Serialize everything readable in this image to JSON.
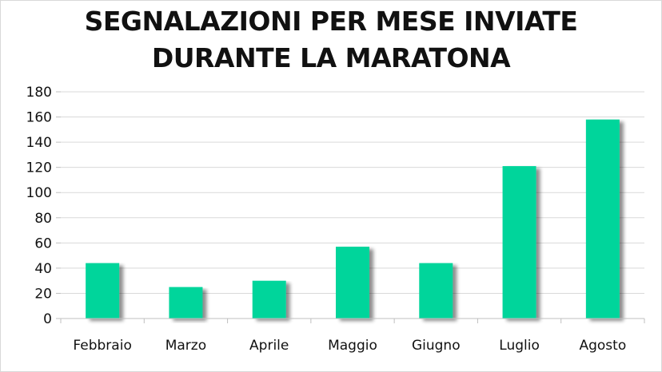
{
  "chart_data": {
    "type": "bar",
    "title_lines": [
      "SEGNALAZIONI PER MESE INVIATE",
      "DURANTE LA MARATONA"
    ],
    "categories": [
      "Febbraio",
      "Marzo",
      "Aprile",
      "Maggio",
      "Giugno",
      "Luglio",
      "Agosto"
    ],
    "values": [
      44,
      25,
      30,
      57,
      44,
      121,
      158
    ],
    "ylim": [
      0,
      180
    ],
    "yticks": [
      "0",
      "20",
      "40",
      "60",
      "80",
      "100",
      "120",
      "140",
      "160",
      "180"
    ],
    "grid": true,
    "legend": "none",
    "bar_color": "#00d59b",
    "shadow_color": "#9a9a9a",
    "grid_color": "#d9d9d9"
  }
}
